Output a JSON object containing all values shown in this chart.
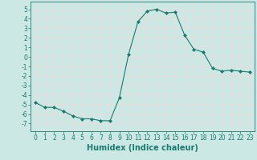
{
  "x": [
    0,
    1,
    2,
    3,
    4,
    5,
    6,
    7,
    8,
    9,
    10,
    11,
    12,
    13,
    14,
    15,
    16,
    17,
    18,
    19,
    20,
    21,
    22,
    23
  ],
  "y": [
    -4.8,
    -5.3,
    -5.3,
    -5.7,
    -6.2,
    -6.5,
    -6.5,
    -6.7,
    -6.7,
    -4.3,
    0.3,
    3.7,
    4.8,
    5.0,
    4.6,
    4.7,
    2.3,
    0.8,
    0.5,
    -1.2,
    -1.5,
    -1.4,
    -1.5,
    -1.6
  ],
  "line_color": "#1a7a6e",
  "marker": "D",
  "marker_size": 2.0,
  "xlabel": "Humidex (Indice chaleur)",
  "xlabel_fontsize": 7,
  "ylim": [
    -7.8,
    5.8
  ],
  "xlim": [
    -0.5,
    23.5
  ],
  "yticks": [
    -7,
    -6,
    -5,
    -4,
    -3,
    -2,
    -1,
    0,
    1,
    2,
    3,
    4,
    5
  ],
  "xticks": [
    0,
    1,
    2,
    3,
    4,
    5,
    6,
    7,
    8,
    9,
    10,
    11,
    12,
    13,
    14,
    15,
    16,
    17,
    18,
    19,
    20,
    21,
    22,
    23
  ],
  "background_color": "#cce8e4",
  "grid_color": "#f0d8d8",
  "tick_fontsize": 5.5
}
